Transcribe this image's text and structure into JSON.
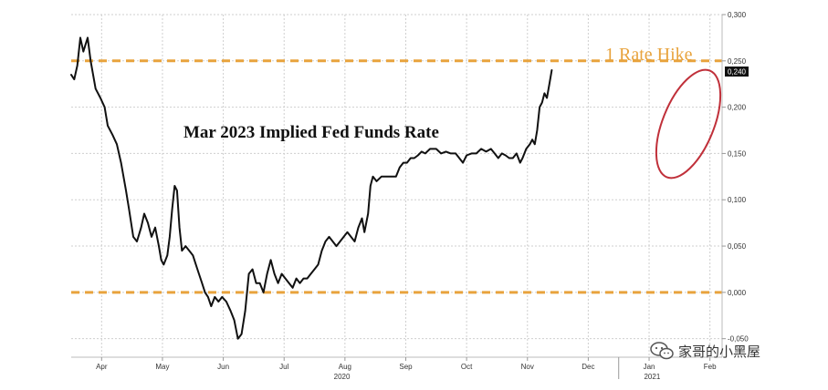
{
  "chart_data": {
    "type": "line",
    "title": "Mar 2023 Implied Fed Funds Rate",
    "ylim": [
      -0.07,
      0.3
    ],
    "y_ticks": [
      "0,300",
      "0,250",
      "0,200",
      "0,150",
      "0,100",
      "0,050",
      "0,000",
      "-0,050"
    ],
    "y_tick_values": [
      0.3,
      0.25,
      0.2,
      0.15,
      0.1,
      0.05,
      0.0,
      -0.05
    ],
    "x_months": [
      "Apr",
      "May",
      "Jun",
      "Jul",
      "Aug",
      "Sep",
      "Oct",
      "Nov",
      "Dec",
      "Jan",
      "Feb"
    ],
    "x_years": [
      "2020",
      "2021"
    ],
    "grid": true,
    "reference_lines": [
      {
        "value": 0.25,
        "label": "1 Rate Hike",
        "color": "#e8a33d"
      },
      {
        "value": 0.0,
        "label": "",
        "color": "#e8a33d"
      }
    ],
    "last_value_label": "0,240",
    "annotation": {
      "type": "ellipse",
      "color": "#c0303a"
    },
    "series": [
      {
        "color": "#111111",
        "points": [
          [
            0.0,
            0.235
          ],
          [
            0.05,
            0.23
          ],
          [
            0.1,
            0.245
          ],
          [
            0.15,
            0.275
          ],
          [
            0.2,
            0.26
          ],
          [
            0.27,
            0.275
          ],
          [
            0.32,
            0.25
          ],
          [
            0.4,
            0.22
          ],
          [
            0.48,
            0.21
          ],
          [
            0.55,
            0.2
          ],
          [
            0.6,
            0.18
          ],
          [
            0.68,
            0.17
          ],
          [
            0.75,
            0.16
          ],
          [
            0.82,
            0.14
          ],
          [
            0.9,
            0.11
          ],
          [
            0.95,
            0.09
          ],
          [
            1.02,
            0.06
          ],
          [
            1.08,
            0.055
          ],
          [
            1.15,
            0.07
          ],
          [
            1.2,
            0.085
          ],
          [
            1.26,
            0.075
          ],
          [
            1.32,
            0.06
          ],
          [
            1.38,
            0.07
          ],
          [
            1.44,
            0.05
          ],
          [
            1.48,
            0.035
          ],
          [
            1.52,
            0.03
          ],
          [
            1.58,
            0.04
          ],
          [
            1.62,
            0.06
          ],
          [
            1.66,
            0.09
          ],
          [
            1.7,
            0.115
          ],
          [
            1.74,
            0.11
          ],
          [
            1.78,
            0.07
          ],
          [
            1.82,
            0.045
          ],
          [
            1.88,
            0.05
          ],
          [
            1.94,
            0.045
          ],
          [
            2.0,
            0.04
          ],
          [
            2.05,
            0.03
          ],
          [
            2.1,
            0.02
          ],
          [
            2.15,
            0.01
          ],
          [
            2.2,
            0.0
          ],
          [
            2.25,
            -0.005
          ],
          [
            2.3,
            -0.015
          ],
          [
            2.36,
            -0.005
          ],
          [
            2.42,
            -0.01
          ],
          [
            2.48,
            -0.005
          ],
          [
            2.55,
            -0.01
          ],
          [
            2.62,
            -0.02
          ],
          [
            2.68,
            -0.03
          ],
          [
            2.74,
            -0.05
          ],
          [
            2.8,
            -0.045
          ],
          [
            2.86,
            -0.02
          ],
          [
            2.92,
            0.02
          ],
          [
            2.98,
            0.025
          ],
          [
            3.04,
            0.01
          ],
          [
            3.1,
            0.01
          ],
          [
            3.16,
            0.0
          ],
          [
            3.22,
            0.02
          ],
          [
            3.28,
            0.035
          ],
          [
            3.34,
            0.02
          ],
          [
            3.4,
            0.01
          ],
          [
            3.46,
            0.02
          ],
          [
            3.52,
            0.015
          ],
          [
            3.58,
            0.01
          ],
          [
            3.64,
            0.005
          ],
          [
            3.7,
            0.015
          ],
          [
            3.76,
            0.01
          ],
          [
            3.82,
            0.015
          ],
          [
            3.88,
            0.015
          ],
          [
            3.94,
            0.02
          ],
          [
            4.0,
            0.025
          ],
          [
            4.06,
            0.03
          ],
          [
            4.12,
            0.045
          ],
          [
            4.18,
            0.055
          ],
          [
            4.24,
            0.06
          ],
          [
            4.3,
            0.055
          ],
          [
            4.36,
            0.05
          ],
          [
            4.42,
            0.055
          ],
          [
            4.48,
            0.06
          ],
          [
            4.54,
            0.065
          ],
          [
            4.6,
            0.06
          ],
          [
            4.66,
            0.055
          ],
          [
            4.72,
            0.07
          ],
          [
            4.78,
            0.08
          ],
          [
            4.82,
            0.065
          ],
          [
            4.88,
            0.085
          ],
          [
            4.92,
            0.115
          ],
          [
            4.96,
            0.125
          ],
          [
            5.02,
            0.12
          ],
          [
            5.1,
            0.125
          ],
          [
            5.18,
            0.125
          ],
          [
            5.26,
            0.125
          ],
          [
            5.34,
            0.125
          ],
          [
            5.4,
            0.135
          ],
          [
            5.46,
            0.14
          ],
          [
            5.52,
            0.14
          ],
          [
            5.58,
            0.145
          ],
          [
            5.64,
            0.145
          ],
          [
            5.7,
            0.148
          ],
          [
            5.76,
            0.152
          ],
          [
            5.82,
            0.15
          ],
          [
            5.9,
            0.155
          ],
          [
            6.0,
            0.155
          ],
          [
            6.08,
            0.15
          ],
          [
            6.16,
            0.152
          ],
          [
            6.24,
            0.15
          ],
          [
            6.32,
            0.15
          ],
          [
            6.38,
            0.145
          ],
          [
            6.44,
            0.14
          ],
          [
            6.5,
            0.148
          ],
          [
            6.58,
            0.15
          ],
          [
            6.66,
            0.15
          ],
          [
            6.74,
            0.155
          ],
          [
            6.82,
            0.152
          ],
          [
            6.9,
            0.155
          ],
          [
            6.96,
            0.15
          ],
          [
            7.02,
            0.145
          ],
          [
            7.08,
            0.15
          ],
          [
            7.14,
            0.148
          ],
          [
            7.2,
            0.145
          ],
          [
            7.26,
            0.145
          ],
          [
            7.32,
            0.15
          ],
          [
            7.38,
            0.14
          ],
          [
            7.42,
            0.145
          ],
          [
            7.48,
            0.155
          ],
          [
            7.54,
            0.16
          ],
          [
            7.58,
            0.165
          ],
          [
            7.62,
            0.16
          ],
          [
            7.66,
            0.175
          ],
          [
            7.7,
            0.2
          ],
          [
            7.74,
            0.205
          ],
          [
            7.78,
            0.215
          ],
          [
            7.82,
            0.21
          ],
          [
            7.86,
            0.225
          ],
          [
            7.9,
            0.24
          ]
        ]
      }
    ]
  },
  "watermark": {
    "text": "家哥的小黑屋",
    "icon": "chat-bubbles-icon"
  }
}
